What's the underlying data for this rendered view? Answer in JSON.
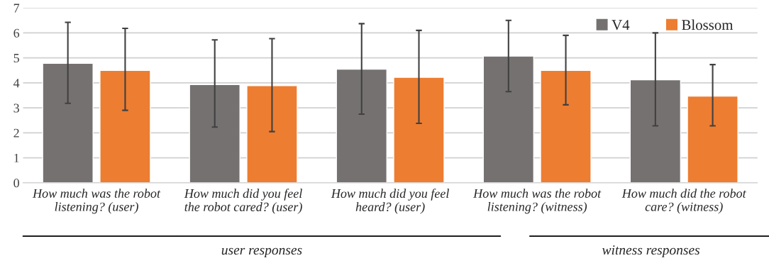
{
  "chart_data": {
    "type": "bar",
    "categories": [
      "How much was the robot\nlistening? (user)",
      "How much did you feel\nthe robot cared? (user)",
      "How much did you feel\nheard? (user)",
      "How much was the robot\nlistening? (witness)",
      "How much did the robot\ncare? (witness)"
    ],
    "series": [
      {
        "name": "V4",
        "color": "#767171",
        "values": [
          4.78,
          3.93,
          4.55,
          5.07,
          4.12
        ],
        "errors": [
          [
            3.18,
            6.42
          ],
          [
            2.23,
            5.72
          ],
          [
            2.75,
            6.37
          ],
          [
            3.65,
            6.5
          ],
          [
            2.28,
            6.0
          ]
        ]
      },
      {
        "name": "Blossom",
        "color": "#ed7d31",
        "values": [
          4.5,
          3.89,
          4.22,
          4.5,
          3.47
        ],
        "errors": [
          [
            2.9,
            6.18
          ],
          [
            2.05,
            5.77
          ],
          [
            2.38,
            6.1
          ],
          [
            3.12,
            5.9
          ],
          [
            2.28,
            4.73
          ]
        ]
      }
    ],
    "ylim": [
      0,
      7
    ],
    "yticks": [
      0,
      1,
      2,
      3,
      4,
      5,
      6,
      7
    ],
    "grid": "y",
    "legend": "top right",
    "annotations": [
      "user responses",
      "witness responses"
    ]
  }
}
